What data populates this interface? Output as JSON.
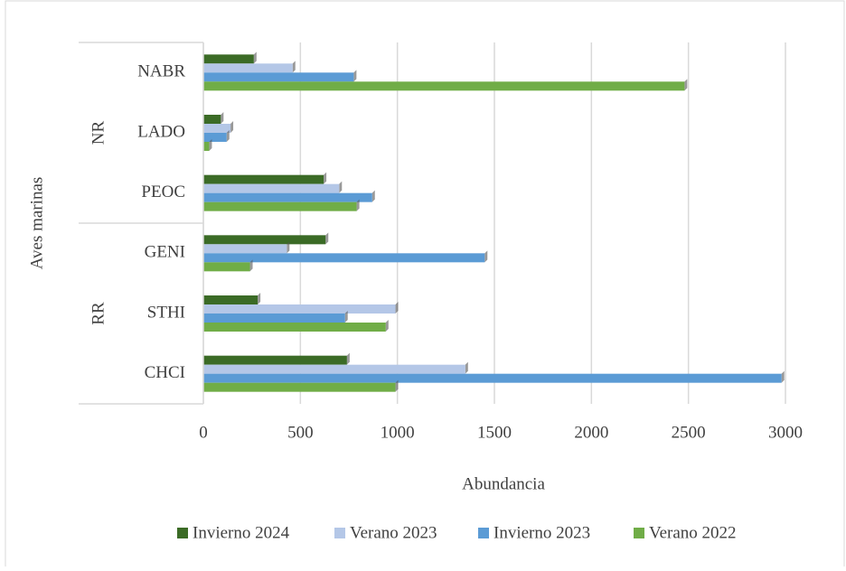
{
  "chart_data": {
    "type": "bar",
    "orientation": "horizontal",
    "x_label": "Abundancia",
    "y_label": "Aves marinas",
    "groups": [
      {
        "name": "NR",
        "categories": [
          "NABR",
          "LADO",
          "PEOC"
        ]
      },
      {
        "name": "RR",
        "categories": [
          "GENI",
          "STHI",
          "CHCI"
        ]
      }
    ],
    "series": [
      {
        "name": "Invierno 2024",
        "color": "#3b6b26",
        "values": [
          260,
          90,
          620,
          630,
          280,
          740
        ]
      },
      {
        "name": "Verano 2023",
        "color": "#b4c7e7",
        "values": [
          460,
          140,
          700,
          430,
          990,
          1350
        ]
      },
      {
        "name": "Invierno 2023",
        "color": "#5b9bd5",
        "values": [
          775,
          120,
          870,
          1450,
          730,
          2980
        ]
      },
      {
        "name": "Verano 2022",
        "color": "#70ad47",
        "values": [
          2480,
          30,
          790,
          240,
          940,
          990
        ]
      }
    ],
    "xlim": [
      0,
      3000
    ],
    "xticks": [
      0,
      500,
      1000,
      1500,
      2000,
      2500,
      3000
    ],
    "grid": true,
    "legend": "bottom"
  }
}
